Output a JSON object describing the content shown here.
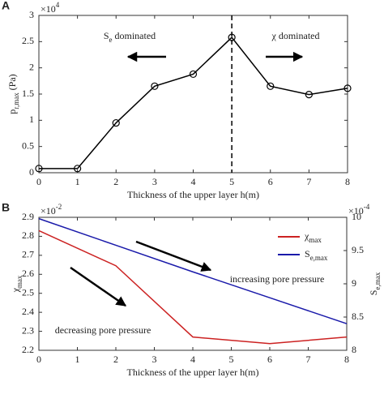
{
  "chart_data": [
    {
      "type": "line",
      "panel_label": "A",
      "xlabel": "Thickness of the upper layer h(m)",
      "ylabel": [
        "p",
        "r,max",
        " (Pa)"
      ],
      "y_multiplier": [
        "×10",
        "4"
      ],
      "x": [
        0,
        1,
        2,
        3,
        4,
        5,
        6,
        7,
        8
      ],
      "values": [
        0.08,
        0.08,
        0.95,
        1.65,
        1.88,
        2.58,
        1.65,
        1.49,
        1.61
      ],
      "color": "#000000",
      "marker": "circle",
      "xlim": [
        0,
        8
      ],
      "xticks": [
        0,
        1,
        2,
        3,
        4,
        5,
        6,
        7,
        8
      ],
      "ylim": [
        0,
        3
      ],
      "yticks": [
        0,
        0.5,
        1,
        1.5,
        2,
        2.5,
        3
      ],
      "vline": 5,
      "annotations": [
        [
          "S",
          "e",
          " dominated"
        ],
        [
          "χ dominated"
        ]
      ]
    },
    {
      "type": "line",
      "panel_label": "B",
      "xlabel": "Thickness of the upper layer h(m)",
      "ylabel": [
        "χ",
        "max"
      ],
      "y2label": [
        "S",
        "e,max"
      ],
      "y_multiplier": [
        "×10",
        "-2"
      ],
      "y2_multiplier": [
        "×10",
        "-4"
      ],
      "x": [
        0,
        2,
        4,
        6,
        8
      ],
      "series": [
        {
          "name": [
            "χ",
            "max"
          ],
          "color": "#cc2222",
          "values": [
            2.83,
            2.645,
            2.27,
            2.235,
            2.27
          ]
        },
        {
          "name": [
            "S",
            "e,max"
          ],
          "color": "#1a1aaa",
          "axis": "y2",
          "values": [
            9.98,
            9.58,
            9.18,
            8.79,
            8.4
          ]
        }
      ],
      "xlim": [
        0,
        8
      ],
      "xticks": [
        0,
        1,
        2,
        3,
        4,
        5,
        6,
        7,
        8
      ],
      "ylim": [
        2.2,
        2.9
      ],
      "yticks": [
        2.2,
        2.3,
        2.4,
        2.5,
        2.6,
        2.7,
        2.8,
        2.9
      ],
      "y2lim": [
        8,
        10
      ],
      "y2ticks": [
        8,
        8.5,
        9,
        9.5,
        10
      ],
      "annotations": [
        [
          "increasing pore pressure"
        ],
        [
          "decreasing pore pressure"
        ]
      ]
    }
  ]
}
